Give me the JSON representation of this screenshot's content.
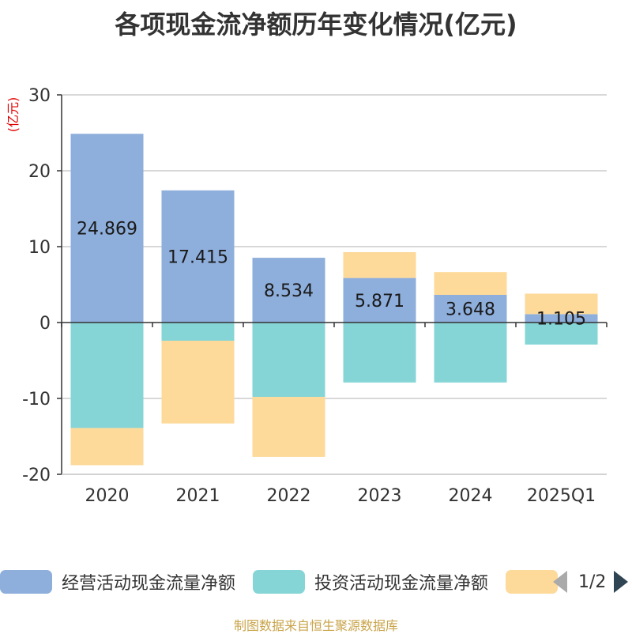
{
  "title": "各项现金流净额历年变化情况(亿元)",
  "footer": "制图数据来自恒生聚源数据库",
  "pager": {
    "text": "1/2"
  },
  "chart_data": {
    "type": "bar",
    "stacked": true,
    "title": "各项现金流净额历年变化情况(亿元)",
    "ylabel": "(亿元)",
    "xlabel": "",
    "ylim": [
      -20,
      30
    ],
    "yticks": [
      30,
      20,
      10,
      0,
      -10,
      -20
    ],
    "grid": true,
    "legend_position": "bottom",
    "categories": [
      "2020",
      "2021",
      "2022",
      "2023",
      "2024",
      "2025Q1"
    ],
    "series": [
      {
        "name": "经营活动现金流量净额",
        "color": "#8eaedb",
        "values": [
          24.869,
          17.415,
          8.534,
          5.871,
          3.648,
          1.105
        ],
        "labels": [
          "24.869",
          "17.415",
          "8.534",
          "5.871",
          "3.648",
          "1.105"
        ]
      },
      {
        "name": "投资活动现金流量净额",
        "color": "#86d5d6",
        "values": [
          -13.9,
          -2.4,
          -9.8,
          -7.9,
          -7.9,
          -2.9
        ]
      },
      {
        "name": "",
        "color": "#fdd99a",
        "values": [
          -4.9,
          -10.9,
          -7.9,
          3.4,
          3.0,
          2.7
        ]
      }
    ]
  }
}
